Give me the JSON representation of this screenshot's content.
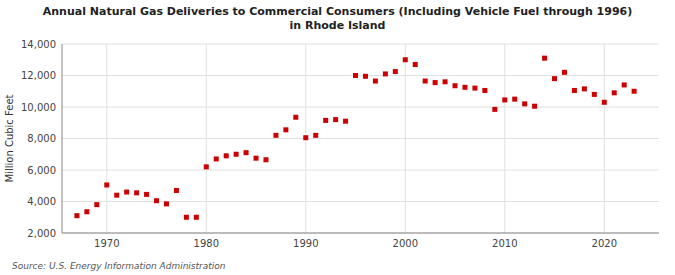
{
  "chart_data": {
    "type": "scatter",
    "title": "Annual Natural Gas Deliveries to Commercial Consumers (Including Vehicle Fuel through 1996)\nin Rhode Island",
    "ylabel": "Million Cubic Feet",
    "source": "Source: U.S. Energy Information Administration",
    "color": "#cc0000",
    "marker": "square",
    "grid": true,
    "x": [
      1967,
      1968,
      1969,
      1970,
      1971,
      1972,
      1973,
      1974,
      1975,
      1976,
      1977,
      1978,
      1979,
      1980,
      1981,
      1982,
      1983,
      1984,
      1985,
      1986,
      1987,
      1988,
      1989,
      1990,
      1991,
      1992,
      1993,
      1994,
      1995,
      1996,
      1997,
      1998,
      1999,
      2000,
      2001,
      2002,
      2003,
      2004,
      2005,
      2006,
      2007,
      2008,
      2009,
      2010,
      2011,
      2012,
      2013,
      2014,
      2015,
      2016,
      2017,
      2018,
      2019,
      2020,
      2021,
      2022,
      2023
    ],
    "values": [
      3100,
      3350,
      3800,
      5050,
      4400,
      4600,
      4550,
      4450,
      4050,
      3850,
      4700,
      3000,
      3000,
      6200,
      6700,
      6900,
      7000,
      7100,
      6750,
      6650,
      8200,
      8550,
      9350,
      8050,
      8200,
      9150,
      9200,
      9100,
      12000,
      11950,
      11650,
      12100,
      12250,
      13000,
      12700,
      11650,
      11550,
      11600,
      11350,
      11250,
      11200,
      11050,
      9850,
      10450,
      10500,
      10200,
      10050,
      13100,
      11800,
      12200,
      11050,
      11150,
      10800,
      10300,
      10900,
      11400,
      11000
    ],
    "xlim": [
      1965.5,
      2025.5
    ],
    "xticks": [
      1970,
      1980,
      1990,
      2000,
      2010,
      2020
    ],
    "ylim": [
      2000,
      14000
    ],
    "yticks": [
      {
        "value": 2000,
        "label": "2,000"
      },
      {
        "value": 4000,
        "label": "4,000"
      },
      {
        "value": 6000,
        "label": "6,000"
      },
      {
        "value": 8000,
        "label": "8,000"
      },
      {
        "value": 10000,
        "label": "10,000"
      },
      {
        "value": 12000,
        "label": "12,000"
      },
      {
        "value": 14000,
        "label": "14,000"
      }
    ]
  }
}
